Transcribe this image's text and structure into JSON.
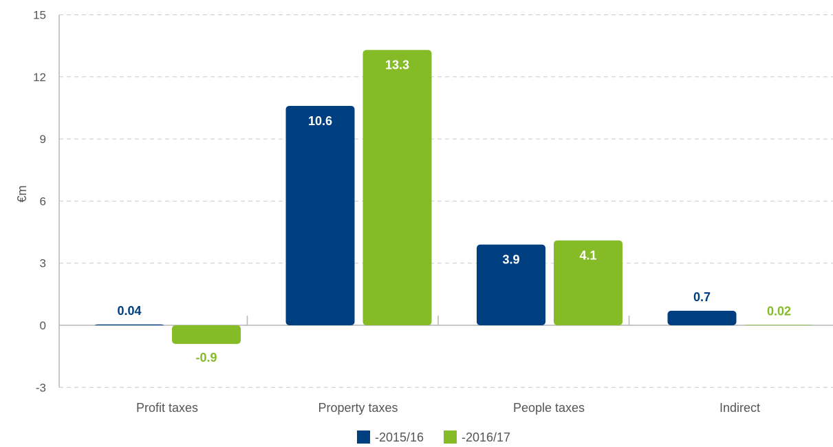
{
  "chart_data": {
    "type": "bar",
    "categories": [
      "Profit taxes",
      "Property taxes",
      "People taxes",
      "Indirect"
    ],
    "series": [
      {
        "name": "-2015/16",
        "color": "#003f7f",
        "values": [
          0.04,
          10.6,
          3.9,
          0.7
        ],
        "labels": [
          "0.04",
          "10.6",
          "3.9",
          "0.7"
        ]
      },
      {
        "name": "-2016/17",
        "color": "#84bb27",
        "values": [
          -0.9,
          13.3,
          4.1,
          0.02
        ],
        "labels": [
          "-0.9",
          "13.3",
          "4.1",
          "0.02"
        ]
      }
    ],
    "ylabel": "€m",
    "xlabel": "",
    "ylim": [
      -3,
      15
    ],
    "yticks": [
      -3,
      0,
      3,
      6,
      9,
      12,
      15
    ],
    "grid": true,
    "legend": "bottom-center"
  }
}
